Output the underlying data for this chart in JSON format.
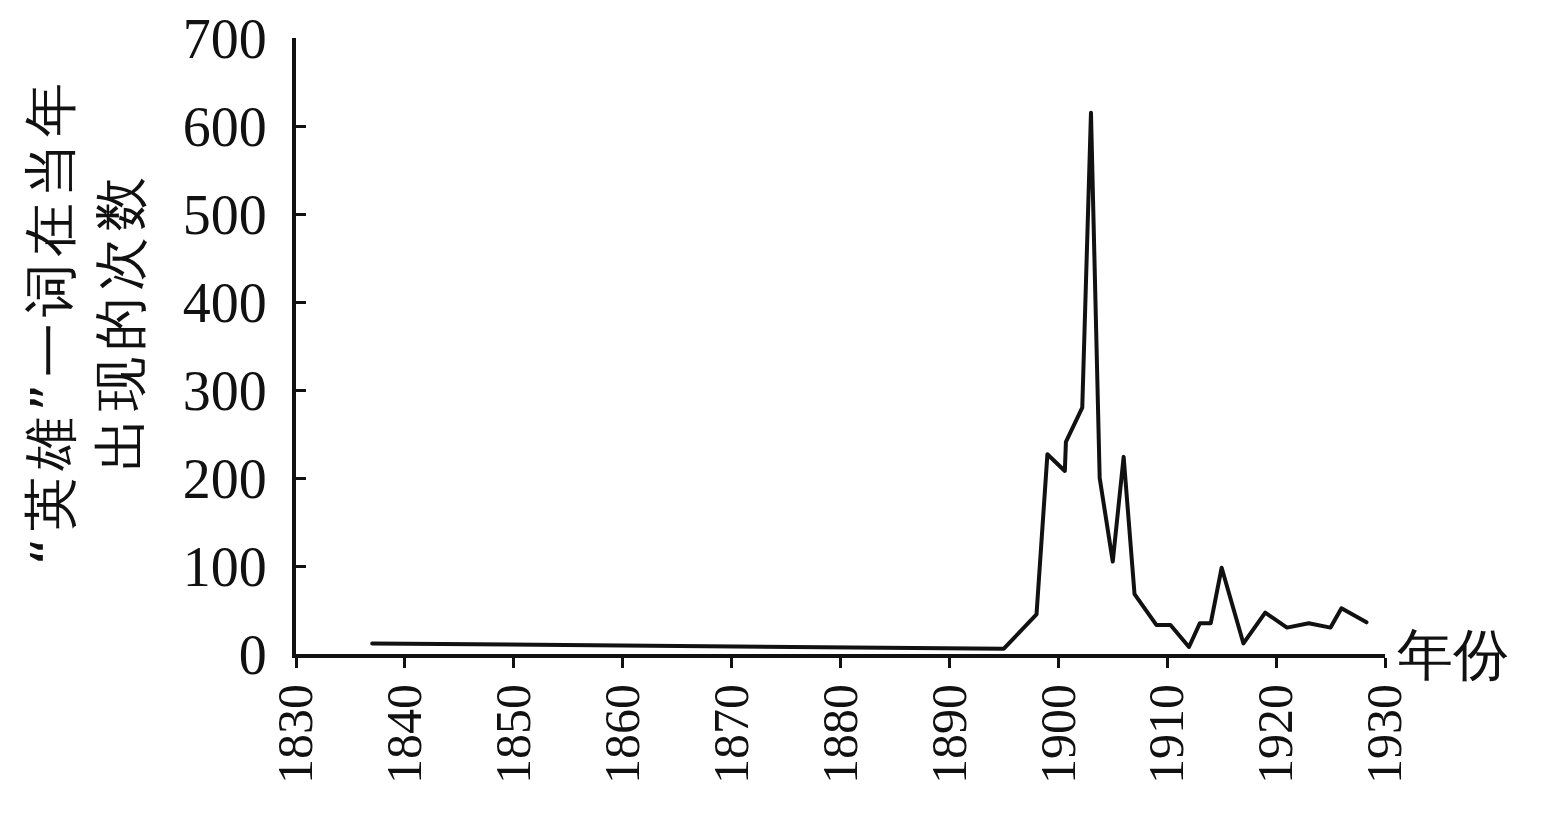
{
  "chart_data": {
    "type": "line",
    "xlabel": "年份",
    "ylabel": "“英雄”一词在当年出现的次数",
    "x": [
      1837,
      1895,
      1898,
      1899,
      1900.6,
      1900.7,
      1902.2,
      1903,
      1903.8,
      1905,
      1906,
      1907,
      1909,
      1910.3,
      1912,
      1913,
      1914,
      1915,
      1917,
      1919,
      1921,
      1923,
      1925,
      1926,
      1928.3
    ],
    "series": [
      {
        "color": "#111111",
        "values": [
          12,
          6,
          45,
          227,
          208,
          241,
          280,
          615,
          200,
          105,
          224,
          68,
          33,
          33,
          8,
          35,
          35,
          98,
          12,
          47,
          30,
          35,
          30,
          52,
          36
        ]
      }
    ],
    "xlim": [
      1830,
      1930
    ],
    "xticks": [
      1830,
      1840,
      1850,
      1860,
      1870,
      1880,
      1890,
      1900,
      1910,
      1920,
      1930
    ],
    "ylim": [
      0,
      700
    ],
    "yticks": [
      0,
      100,
      200,
      300,
      400,
      500,
      600,
      700
    ],
    "marker": "none",
    "line_style": "solid"
  }
}
